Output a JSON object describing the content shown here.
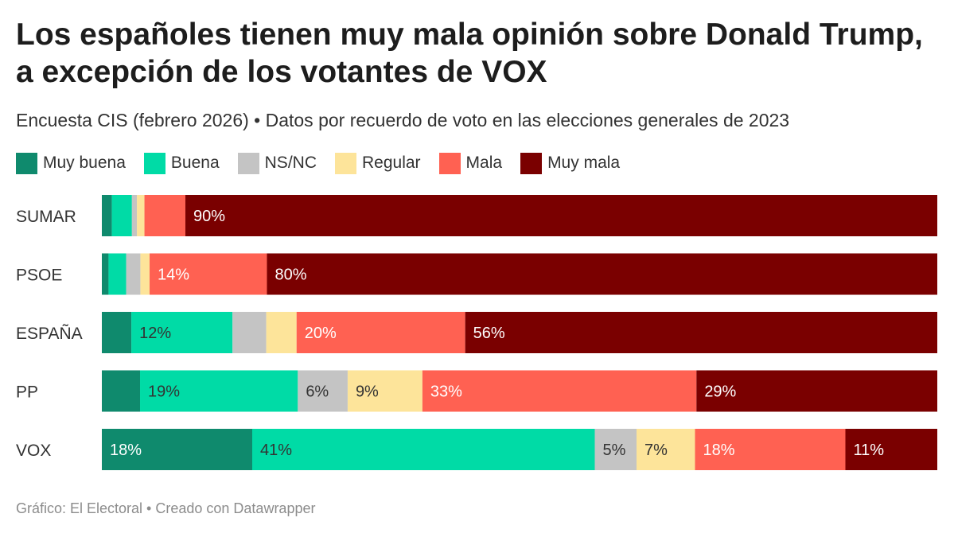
{
  "header": {
    "title": "Los españoles tienen muy mala opinión sobre Donald Trump, a excepción de los votantes de VOX",
    "subtitle": "Encuesta CIS (febrero 2026) • Datos por recuerdo de voto en las elecciones generales de 2023"
  },
  "footer": {
    "credit": "Gráfico: El Electoral • Creado con Datawrapper"
  },
  "chart_data": {
    "type": "bar",
    "orientation": "horizontal",
    "stacked": true,
    "normalized": true,
    "legend_position": "top",
    "grid": false,
    "categories": [
      "SUMAR",
      "PSOE",
      "ESPAÑA",
      "PP",
      "VOX"
    ],
    "series": [
      {
        "name": "Muy buena",
        "color": "#0f8a6d",
        "values": [
          1.2,
          0.8,
          3.5,
          4.6,
          18
        ]
      },
      {
        "name": "Buena",
        "color": "#00dba6",
        "values": [
          2.4,
          2.1,
          12,
          19,
          41
        ]
      },
      {
        "name": "NS/NC",
        "color": "#c4c4c4",
        "values": [
          0.6,
          1.7,
          4,
          6,
          5
        ]
      },
      {
        "name": "Regular",
        "color": "#fde49a",
        "values": [
          0.9,
          1.1,
          3.6,
          9,
          7
        ]
      },
      {
        "name": "Mala",
        "color": "#ff6152",
        "values": [
          4.9,
          14,
          20,
          33,
          18
        ]
      },
      {
        "name": "Muy mala",
        "color": "#7a0000",
        "values": [
          90,
          80,
          56,
          29,
          11
        ]
      }
    ],
    "data_labels": [
      [
        "",
        "",
        "",
        "",
        "",
        "90%"
      ],
      [
        "",
        "",
        "",
        "",
        "14%",
        "80%"
      ],
      [
        "",
        "12%",
        "",
        "",
        "20%",
        "56%"
      ],
      [
        "",
        "19%",
        "6%",
        "9%",
        "33%",
        "29%"
      ],
      [
        "18%",
        "41%",
        "5%",
        "7%",
        "18%",
        "11%"
      ]
    ]
  }
}
